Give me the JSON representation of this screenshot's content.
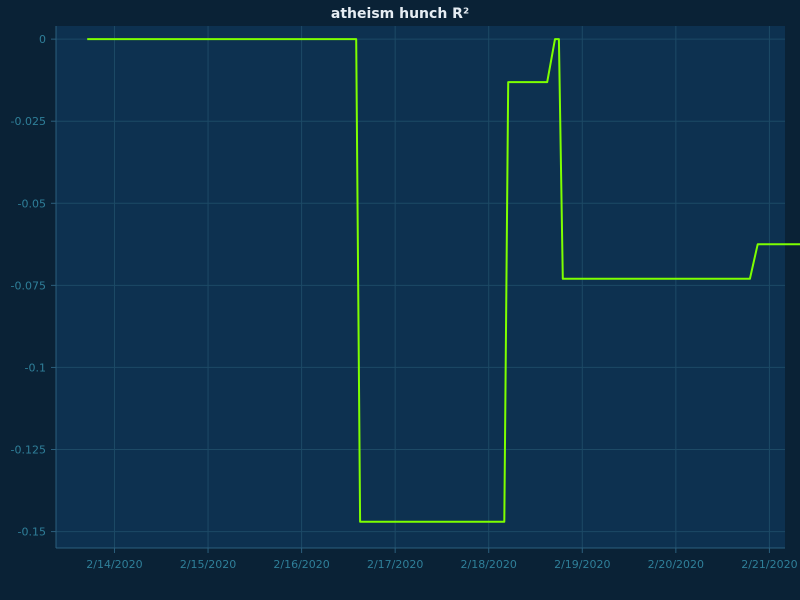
{
  "chart_data": {
    "type": "line",
    "title": "atheism hunch R²",
    "xlabel": "",
    "ylabel": "",
    "x_ticks": [
      "2/14/2020",
      "2/15/2020",
      "2/16/2020",
      "2/17/2020",
      "2/18/2020",
      "2/19/2020",
      "2/20/2020",
      "2/21/2020"
    ],
    "y_ticks": [
      "0",
      "-0.025",
      "-0.05",
      "-0.075",
      "-0.1",
      "-0.125",
      "-0.15"
    ],
    "ylim": [
      -0.155,
      0.004
    ],
    "xlim": [
      "2020-02-13 09:00",
      "2020-02-21 04:00"
    ],
    "grid": true,
    "colors": {
      "line": "#7dff00",
      "background": "#0a2236",
      "plot_area": "#0d3150"
    },
    "series": [
      {
        "x": [
          "2020-02-13 17:00",
          "2020-02-16 14:00",
          "2020-02-16 15:00",
          "2020-02-18 04:00",
          "2020-02-18 05:00",
          "2020-02-18 15:00",
          "2020-02-18 17:00",
          "2020-02-18 18:00",
          "2020-02-18 19:00",
          "2020-02-20 19:00",
          "2020-02-20 21:00",
          "2020-02-21 18:00"
        ],
        "y": [
          0,
          0,
          -0.147,
          -0.147,
          -0.0131,
          -0.0131,
          0,
          0,
          -0.073,
          -0.073,
          -0.0625,
          -0.0625
        ]
      }
    ]
  }
}
